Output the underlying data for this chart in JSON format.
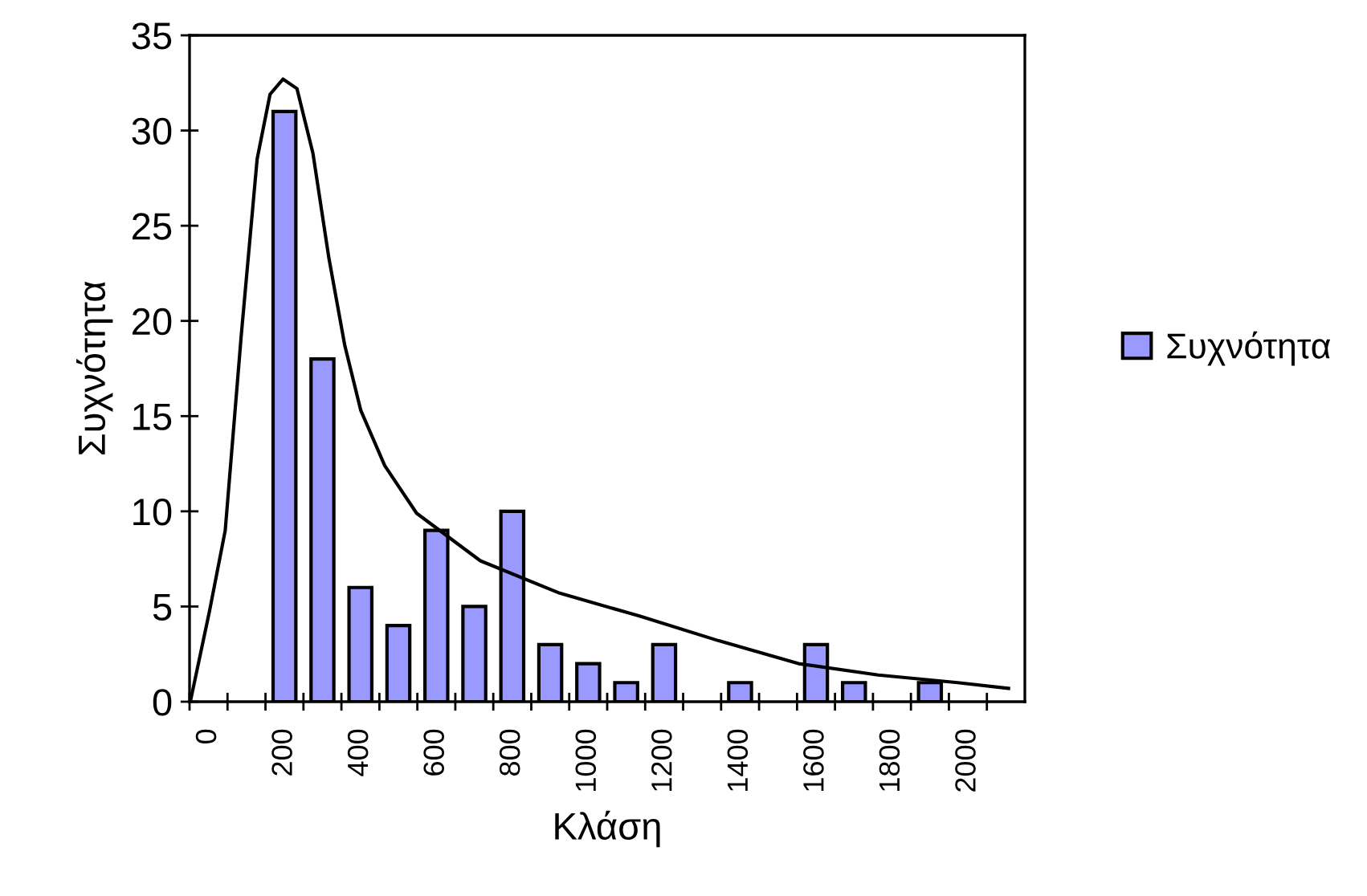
{
  "chart_data": {
    "type": "bar",
    "xlabel": "Κλάση",
    "ylabel": "Συχνότητα",
    "x": [
      200,
      300,
      400,
      500,
      600,
      700,
      800,
      900,
      1000,
      1100,
      1200,
      1300,
      1400,
      1500,
      1600,
      1700,
      1800,
      1900
    ],
    "series": [
      {
        "name": "Συχνότητα",
        "color": "#9999ff",
        "values": [
          31,
          18,
          6,
          4,
          9,
          5,
          10,
          3,
          2,
          1,
          3,
          null,
          1,
          null,
          3,
          1,
          null,
          1
        ]
      },
      {
        "type": "line",
        "color": "#000000",
        "x": [
          -48,
          3,
          44,
          86,
          128,
          162,
          196,
          233,
          275,
          317,
          359,
          401,
          464,
          548,
          716,
          925,
          1135,
          1344,
          1554,
          1764,
          1973,
          2107
        ],
        "values": [
          0,
          4.8,
          9.0,
          19.2,
          28.5,
          31.9,
          32.7,
          32.2,
          28.8,
          23.3,
          18.7,
          15.3,
          12.4,
          9.9,
          7.4,
          5.7,
          4.5,
          3.2,
          2.0,
          1.4,
          1.0,
          0.7
        ]
      }
    ],
    "xlim": [
      -50,
      2150
    ],
    "xticks": [
      0,
      200,
      400,
      600,
      800,
      1000,
      1200,
      1400,
      1600,
      1800,
      2000,
      {
        "value": -50,
        "label": null
      },
      {
        "value": 50,
        "label": null
      },
      {
        "value": 150,
        "label": null
      },
      {
        "value": 250,
        "label": null
      },
      {
        "value": 350,
        "label": null
      },
      {
        "value": 450,
        "label": null
      },
      {
        "value": 550,
        "label": null
      },
      {
        "value": 650,
        "label": null
      },
      {
        "value": 750,
        "label": null
      },
      {
        "value": 850,
        "label": null
      },
      {
        "value": 950,
        "label": null
      },
      {
        "value": 1050,
        "label": null
      },
      {
        "value": 1150,
        "label": null
      },
      {
        "value": 1250,
        "label": null
      },
      {
        "value": 1350,
        "label": null
      },
      {
        "value": 1450,
        "label": null
      },
      {
        "value": 1550,
        "label": null
      },
      {
        "value": 1650,
        "label": null
      },
      {
        "value": 1750,
        "label": null
      },
      {
        "value": 1850,
        "label": null
      },
      {
        "value": 1950,
        "label": null
      },
      {
        "value": 2050,
        "label": null
      }
    ],
    "ylim": [
      0,
      35
    ],
    "yticks": [
      0,
      5,
      10,
      15,
      20,
      25,
      30,
      35
    ],
    "legend": "right",
    "grid": false,
    "marker": "none",
    "line_style": "solid"
  }
}
